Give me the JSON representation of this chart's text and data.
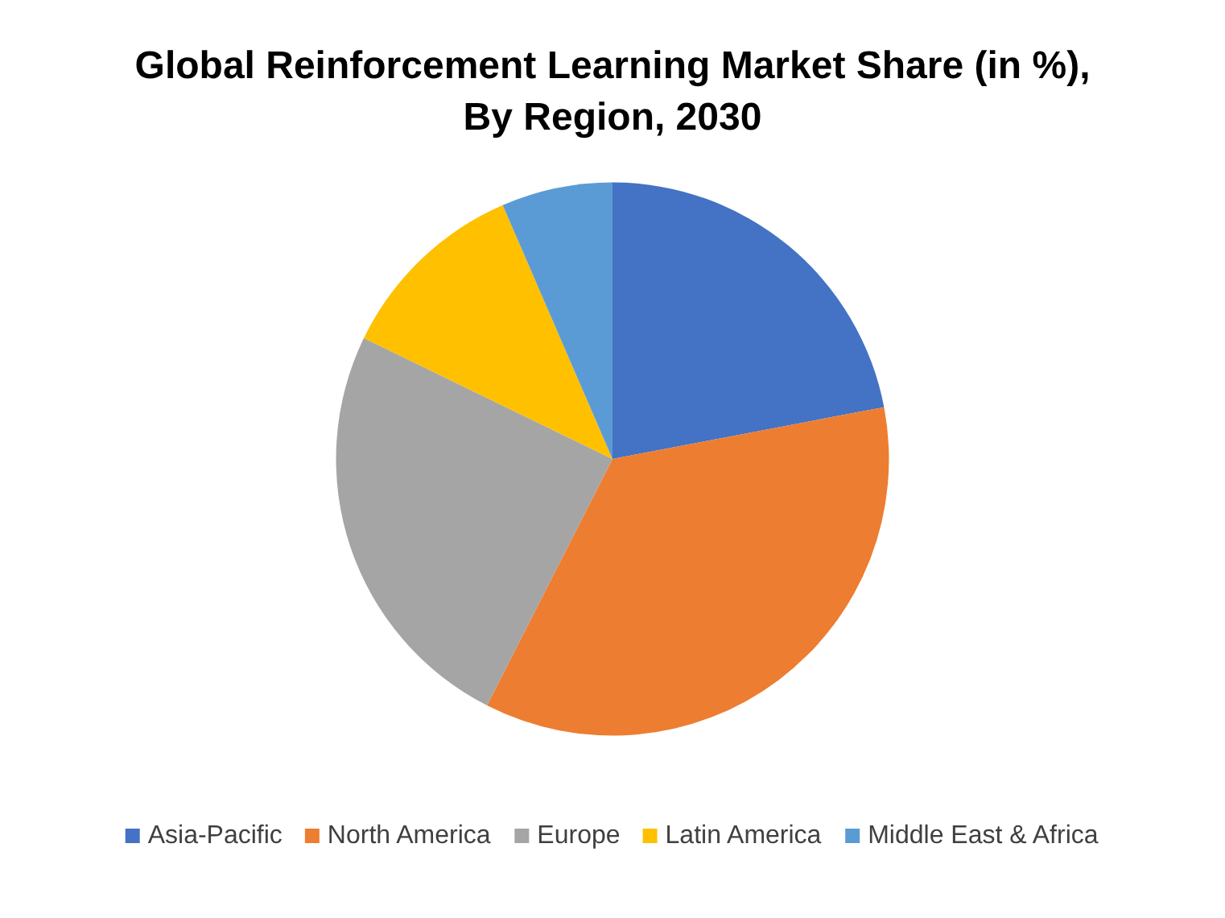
{
  "chart_data": {
    "type": "pie",
    "title": "Global Reinforcement Learning Market Share (in %),\nBy Region, 2030",
    "categories": [
      "Asia-Pacific",
      "North America",
      "Europe",
      "Latin America",
      "Middle East & Africa"
    ],
    "values": [
      22,
      35.5,
      24.7,
      11.3,
      6.5
    ],
    "colors": [
      "#4472c4",
      "#ed7d31",
      "#a5a5a5",
      "#ffc000",
      "#5b9bd5"
    ],
    "legend": "bottom"
  }
}
